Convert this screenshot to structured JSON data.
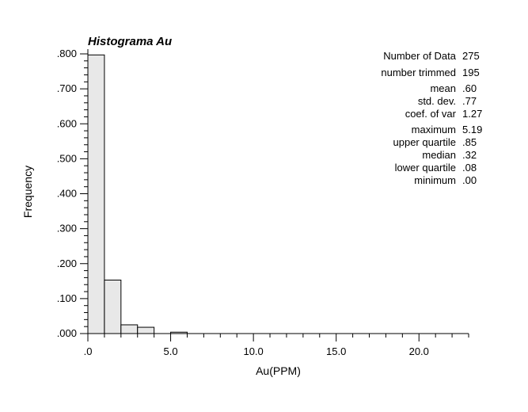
{
  "chart_data": {
    "type": "bar",
    "title": "Histograma  Au",
    "xlabel": "Au(PPM)",
    "ylabel": "Frequency",
    "xlim": [
      0,
      23
    ],
    "ylim": [
      0,
      0.8
    ],
    "x_ticks": [
      ".0",
      "5.0",
      "10.0",
      "15.0",
      "20.0"
    ],
    "y_ticks": [
      ".000",
      ".100",
      ".200",
      ".300",
      ".400",
      ".500",
      ".600",
      ".700",
      ".800"
    ],
    "bin_width": 1,
    "bin_starts": [
      0,
      1,
      2,
      3,
      4,
      5,
      6,
      7,
      8,
      9,
      10,
      11,
      12,
      13,
      14,
      15,
      16,
      17,
      18,
      19,
      20,
      21,
      22
    ],
    "values": [
      0.797,
      0.153,
      0.025,
      0.018,
      0.0,
      0.004,
      0,
      0,
      0,
      0,
      0,
      0,
      0,
      0,
      0,
      0,
      0,
      0,
      0,
      0,
      0,
      0,
      0
    ],
    "bar_fill": "#e8e8e8",
    "bar_stroke": "#000000",
    "grid": false,
    "statistics": [
      {
        "label": "Number of Data",
        "value": "275"
      },
      {
        "label": "number trimmed",
        "value": "195"
      },
      {
        "label": "mean",
        "value": ".60"
      },
      {
        "label": "std. dev.",
        "value": ".77"
      },
      {
        "label": "coef. of var",
        "value": "1.27"
      },
      {
        "label": "maximum",
        "value": "5.19"
      },
      {
        "label": "upper quartile",
        "value": ".85"
      },
      {
        "label": "median",
        "value": ".32"
      },
      {
        "label": "lower quartile",
        "value": ".08"
      },
      {
        "label": "minimum",
        "value": ".00"
      }
    ]
  }
}
